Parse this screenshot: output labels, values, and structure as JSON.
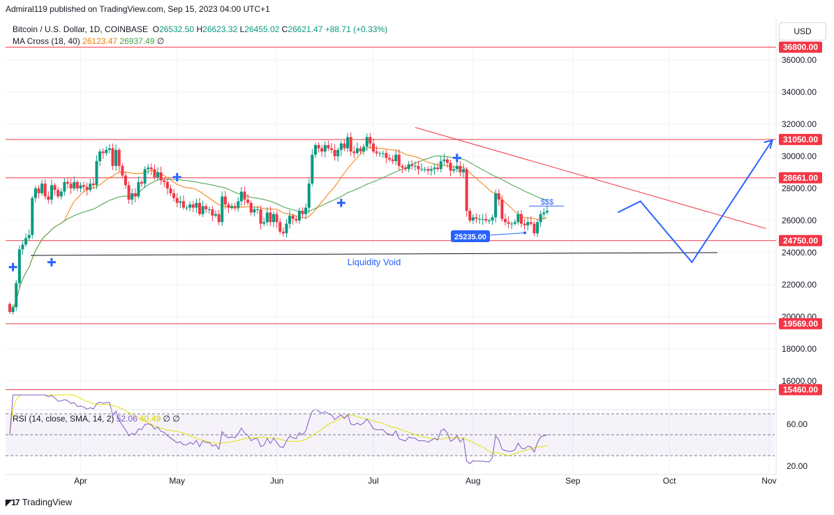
{
  "publisher": "Admiral119 published on TradingView.com, Sep 15, 2023 04:00 UTC+1",
  "legend": {
    "symbol": "Bitcoin / U.S. Dollar, 1D, COINBASE",
    "o_label": "O",
    "o": "26532.50",
    "h_label": "H",
    "h": "26623.32",
    "l_label": "L",
    "l": "26455.02",
    "c_label": "C",
    "c": "26621.47",
    "change": "+88.71 (+0.33%)",
    "ma_title": "MA Cross (18, 40)",
    "ma_fast": "26123.47",
    "ma_slow": "26937.49",
    "ma_extra": "∅",
    "rsi_title": "RSI (14, close, SMA, 14, 2)",
    "rsi_value": "52.06",
    "rsi_sma": "40.49",
    "rsi_extra": "∅ ∅"
  },
  "currency_button": "USD",
  "brand": "TradingView",
  "colors": {
    "up": "#089981",
    "down": "#f23645",
    "ma_fast": "#f57c00",
    "ma_slow": "#43a047",
    "level_line": "#f23645",
    "drawing": "#2962ff",
    "rsi": "#7e57c2",
    "rsi_sma": "#e4e100"
  },
  "chart_data": {
    "type": "candlestick",
    "price_axis": {
      "ticks": [
        16000,
        18000,
        20000,
        22000,
        24000,
        26000,
        28000,
        30000,
        32000,
        34000,
        36000
      ],
      "tick_labels": [
        "16000.00",
        "18000.00",
        "20000.00",
        "22000.00",
        "24000.00",
        "26000.00",
        "28000.00",
        "30000.00",
        "32000.00",
        "34000.00",
        "36000.00"
      ]
    },
    "time_axis": {
      "labels": [
        "Apr",
        "May",
        "Jun",
        "Jul",
        "Aug",
        "Sep",
        "Oct",
        "Nov"
      ]
    },
    "horizontal_levels": [
      {
        "value": 36800,
        "label": "36800.00"
      },
      {
        "value": 31050,
        "label": "31050.00"
      },
      {
        "value": 28661,
        "label": "28661.00"
      },
      {
        "value": 24750,
        "label": "24750.00"
      },
      {
        "value": 19569,
        "label": "19569.00"
      },
      {
        "value": 15460,
        "label": "15460.00"
      }
    ],
    "annotations": {
      "liquidity_void": "Liquidity Void",
      "liquidity_void_price": 24050,
      "dollar_sign": "$$$",
      "low_marker": "25235.00",
      "low_marker_price": 25235
    },
    "trendline": {
      "from": {
        "date": "2023-07-14",
        "price": 31800
      },
      "to": {
        "date": "2023-10-31",
        "price": 25500
      }
    },
    "projection_path": [
      {
        "date": "2023-09-15",
        "price": 26500
      },
      {
        "date": "2023-09-22",
        "price": 27200
      },
      {
        "date": "2023-10-08",
        "price": 23400
      },
      {
        "date": "2023-11-02",
        "price": 31000
      }
    ],
    "ma_cross_markers": [
      {
        "date": "2023-03-11",
        "price": 23100
      },
      {
        "date": "2023-03-23",
        "price": 23400
      },
      {
        "date": "2023-05-01",
        "price": 28700
      },
      {
        "date": "2023-06-21",
        "price": 27100
      },
      {
        "date": "2023-07-27",
        "price": 29900
      }
    ],
    "candles": {
      "start_date": "2023-03-10",
      "close": [
        20300,
        20600,
        22100,
        24200,
        24500,
        24900,
        25100,
        27400,
        28000,
        27700,
        28300,
        27500,
        27300,
        28200,
        27900,
        27500,
        27800,
        28400,
        28300,
        28000,
        28400,
        28000,
        28200,
        28100,
        27900,
        28300,
        28200,
        29700,
        30300,
        30200,
        30400,
        30500,
        29400,
        30400,
        29400,
        28800,
        28200,
        27300,
        27700,
        27500,
        28400,
        28300,
        29200,
        29300,
        29200,
        28700,
        29000,
        28500,
        28400,
        28000,
        27700,
        27400,
        27100,
        27200,
        26800,
        26800,
        27000,
        26800,
        27100,
        26400,
        26900,
        26700,
        26700,
        26300,
        26400,
        25900,
        27500,
        27000,
        26800,
        26900,
        26800,
        27200,
        27800,
        27300,
        27100,
        26500,
        26700,
        26700,
        25800,
        25900,
        26500,
        25900,
        26400,
        25900,
        25300,
        25200,
        25800,
        26300,
        26100,
        26000,
        26600,
        26400,
        26800,
        28300,
        30100,
        30700,
        30500,
        30300,
        30700,
        30500,
        30400,
        30000,
        30400,
        30800,
        30500,
        31200,
        30300,
        30200,
        30500,
        30300,
        30600,
        31200,
        30800,
        30300,
        30200,
        30200,
        30200,
        29900,
        29800,
        29700,
        30100,
        29400,
        29300,
        29200,
        29500,
        29400,
        29400,
        29200,
        29200,
        29200,
        29100,
        29200,
        29300,
        29200,
        29700,
        29800,
        29600,
        29100,
        29200,
        29400,
        29000,
        29200,
        26600,
        26000,
        26200,
        26100,
        26100,
        26100,
        26000,
        26000,
        26200,
        27700,
        27300,
        26100,
        25900,
        25800,
        25800,
        25900,
        26400,
        25800,
        25700,
        25900,
        25800,
        25200,
        25900,
        26400,
        26500,
        26600
      ],
      "open": [
        20800,
        20300,
        20600,
        22100,
        24200,
        24500,
        24900,
        25100,
        27400,
        28000,
        27700,
        28300,
        27500,
        27300,
        28200,
        27900,
        27500,
        27800,
        28400,
        28300,
        28000,
        28400,
        28000,
        28200,
        28100,
        27900,
        28300,
        28200,
        29700,
        30300,
        30200,
        30400,
        30500,
        29400,
        30400,
        29400,
        28800,
        28200,
        27300,
        27700,
        27500,
        28400,
        28300,
        29200,
        29300,
        29200,
        28700,
        29000,
        28500,
        28400,
        28000,
        27700,
        27400,
        27100,
        27200,
        26800,
        26800,
        27000,
        26800,
        27100,
        26400,
        26900,
        26700,
        26700,
        26300,
        26400,
        25900,
        27500,
        27000,
        26800,
        26900,
        26800,
        27200,
        27800,
        27300,
        27100,
        26500,
        26700,
        26700,
        25800,
        25900,
        26500,
        25900,
        26400,
        25900,
        25300,
        25200,
        25800,
        26300,
        26100,
        26000,
        26600,
        26400,
        26800,
        28300,
        30100,
        30700,
        30500,
        30300,
        30700,
        30500,
        30400,
        30000,
        30400,
        30800,
        30500,
        31200,
        30300,
        30200,
        30500,
        30300,
        30600,
        31200,
        30800,
        30300,
        30200,
        30200,
        30200,
        29900,
        29800,
        29700,
        30100,
        29400,
        29300,
        29200,
        29500,
        29400,
        29400,
        29200,
        29200,
        29200,
        29100,
        29200,
        29300,
        29200,
        29700,
        29800,
        29600,
        29100,
        29200,
        29400,
        29000,
        29200,
        26600,
        26000,
        26200,
        26100,
        26100,
        26100,
        26000,
        26000,
        26200,
        27700,
        27300,
        26100,
        25900,
        25800,
        25800,
        25900,
        26400,
        25800,
        25700,
        25900,
        25800,
        25200,
        25900,
        26400,
        26500
      ]
    },
    "ma_fast_values": {
      "start_date": "2023-03-10",
      "end_value": 26123.47
    },
    "ma_slow_values": {
      "start_date": "2023-03-10",
      "end_value": 26937.49
    },
    "rsi_axis": {
      "ticks": [
        20,
        60
      ],
      "tick_labels": [
        "20.00",
        "60.00"
      ],
      "bands": [
        30,
        70
      ]
    },
    "rsi_last": 52.06,
    "rsi_sma_last": 40.49
  }
}
